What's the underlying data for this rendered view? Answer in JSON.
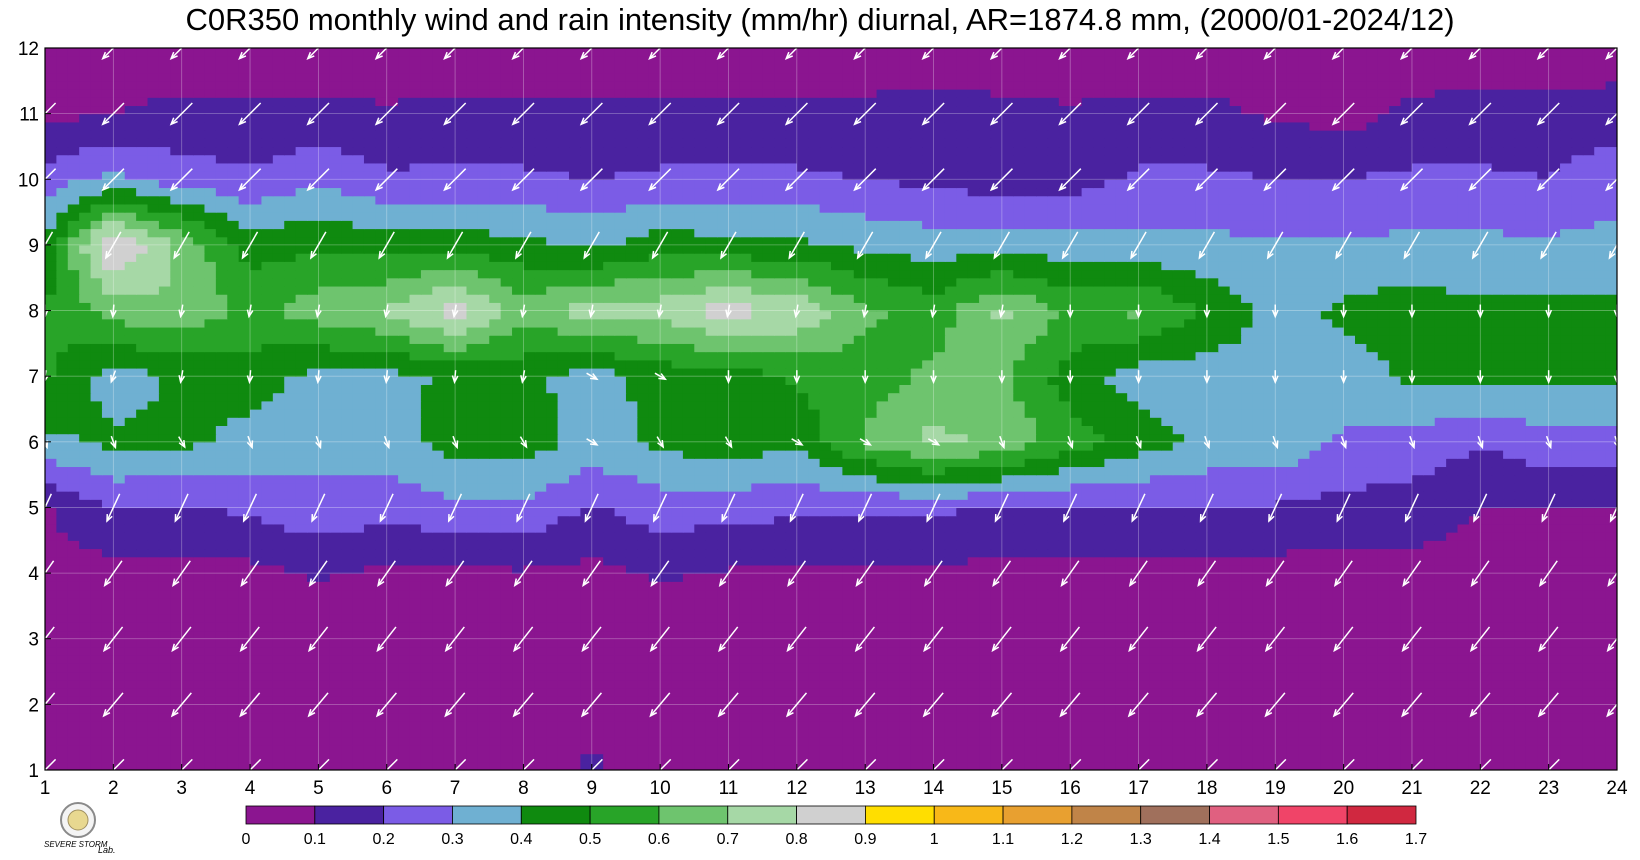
{
  "chart_data": {
    "type": "heatmap",
    "title": "C0R350 monthly wind and rain intensity (mm/hr) diurnal, AR=1874.8 mm, (2000/01-2024/12)",
    "xlabel": "",
    "ylabel": "",
    "x": [
      1,
      2,
      3,
      4,
      5,
      6,
      7,
      8,
      9,
      10,
      11,
      12,
      13,
      14,
      15,
      16,
      17,
      18,
      19,
      20,
      21,
      22,
      23,
      24
    ],
    "y": [
      1,
      2,
      3,
      4,
      5,
      6,
      7,
      8,
      9,
      10,
      11,
      12
    ],
    "xlim": [
      1,
      24
    ],
    "ylim": [
      1,
      12
    ],
    "grid": true,
    "x_tick_labels": [
      "1",
      "2",
      "3",
      "4",
      "5",
      "6",
      "7",
      "8",
      "9",
      "10",
      "11",
      "12",
      "13",
      "14",
      "15",
      "16",
      "17",
      "18",
      "19",
      "20",
      "21",
      "22",
      "23",
      "24"
    ],
    "y_tick_labels": [
      "1",
      "2",
      "3",
      "4",
      "5",
      "6",
      "7",
      "8",
      "9",
      "10",
      "11",
      "12"
    ],
    "colorbar": {
      "placement": "bottom",
      "levels": [
        0,
        0.1,
        0.2,
        0.3,
        0.4,
        0.5,
        0.6,
        0.7,
        0.8,
        0.9,
        1,
        1.1,
        1.2,
        1.3,
        1.4,
        1.5,
        1.6,
        1.7
      ],
      "labels": [
        "0",
        "0.1",
        "0.2",
        "0.3",
        "0.4",
        "0.5",
        "0.6",
        "0.7",
        "0.8",
        "0.9",
        "1",
        "1.1",
        "1.2",
        "1.3",
        "1.4",
        "1.5",
        "1.6",
        "1.7"
      ],
      "colors": [
        "#8b1590",
        "#4a22a0",
        "#7b5ce6",
        "#6fb0d2",
        "#0f8a0f",
        "#28a428",
        "#6ec46e",
        "#a6d8a6",
        "#d0d0d0",
        "#ffde00",
        "#f8b818",
        "#e8a030",
        "#c08448",
        "#a0705c",
        "#e06080",
        "#f04468",
        "#d02840"
      ]
    },
    "contour_line_color": "#f0b030",
    "wind_arrow_color": "#ffffff",
    "intensity_grid": [
      [
        0.05,
        0.05,
        0.05,
        0.05,
        0.05,
        0.05,
        0.05,
        0.05,
        0.12,
        0.05,
        0.05,
        0.05,
        0.05,
        0.05,
        0.05,
        0.05,
        0.05,
        0.05,
        0.05,
        0.05,
        0.05,
        0.05,
        0.05,
        0.05
      ],
      [
        0.05,
        0.05,
        0.05,
        0.05,
        0.05,
        0.05,
        0.05,
        0.05,
        0.05,
        0.05,
        0.05,
        0.05,
        0.05,
        0.05,
        0.05,
        0.05,
        0.05,
        0.05,
        0.05,
        0.05,
        0.05,
        0.05,
        0.05,
        0.05
      ],
      [
        0.05,
        0.05,
        0.05,
        0.05,
        0.05,
        0.05,
        0.05,
        0.05,
        0.05,
        0.05,
        0.05,
        0.05,
        0.05,
        0.05,
        0.05,
        0.05,
        0.05,
        0.05,
        0.05,
        0.05,
        0.05,
        0.05,
        0.05,
        0.05
      ],
      [
        0.06,
        0.06,
        0.06,
        0.07,
        0.11,
        0.08,
        0.08,
        0.09,
        0.07,
        0.11,
        0.09,
        0.08,
        0.08,
        0.08,
        0.07,
        0.06,
        0.06,
        0.06,
        0.06,
        0.06,
        0.06,
        0.06,
        0.06,
        0.06
      ],
      [
        0.09,
        0.21,
        0.19,
        0.22,
        0.27,
        0.24,
        0.27,
        0.28,
        0.19,
        0.25,
        0.24,
        0.22,
        0.21,
        0.22,
        0.19,
        0.19,
        0.19,
        0.19,
        0.19,
        0.17,
        0.16,
        0.1,
        0.1,
        0.1
      ],
      [
        0.38,
        0.42,
        0.42,
        0.37,
        0.33,
        0.35,
        0.45,
        0.45,
        0.36,
        0.42,
        0.46,
        0.42,
        0.62,
        0.73,
        0.68,
        0.55,
        0.45,
        0.38,
        0.38,
        0.28,
        0.26,
        0.21,
        0.26,
        0.27
      ],
      [
        0.52,
        0.35,
        0.42,
        0.44,
        0.37,
        0.37,
        0.42,
        0.43,
        0.35,
        0.44,
        0.44,
        0.52,
        0.55,
        0.62,
        0.62,
        0.45,
        0.35,
        0.35,
        0.38,
        0.35,
        0.42,
        0.42,
        0.42,
        0.42
      ],
      [
        0.5,
        0.65,
        0.68,
        0.58,
        0.65,
        0.72,
        0.85,
        0.65,
        0.75,
        0.75,
        0.85,
        0.78,
        0.62,
        0.55,
        0.72,
        0.58,
        0.62,
        0.48,
        0.36,
        0.42,
        0.45,
        0.42,
        0.42,
        0.42
      ],
      [
        0.42,
        0.92,
        0.68,
        0.45,
        0.48,
        0.45,
        0.45,
        0.43,
        0.38,
        0.45,
        0.43,
        0.42,
        0.38,
        0.35,
        0.35,
        0.35,
        0.32,
        0.32,
        0.32,
        0.32,
        0.32,
        0.32,
        0.32,
        0.32
      ],
      [
        0.25,
        0.32,
        0.25,
        0.22,
        0.28,
        0.22,
        0.22,
        0.22,
        0.2,
        0.22,
        0.22,
        0.22,
        0.2,
        0.18,
        0.15,
        0.16,
        0.22,
        0.22,
        0.2,
        0.2,
        0.22,
        0.22,
        0.2,
        0.28
      ],
      [
        0.07,
        0.1,
        0.12,
        0.12,
        0.12,
        0.11,
        0.12,
        0.12,
        0.12,
        0.12,
        0.12,
        0.12,
        0.12,
        0.13,
        0.12,
        0.11,
        0.12,
        0.12,
        0.09,
        0.06,
        0.12,
        0.13,
        0.13,
        0.14
      ],
      [
        0.05,
        0.05,
        0.05,
        0.05,
        0.05,
        0.05,
        0.05,
        0.05,
        0.05,
        0.05,
        0.05,
        0.05,
        0.05,
        0.06,
        0.05,
        0.05,
        0.05,
        0.05,
        0.05,
        0.05,
        0.05,
        0.05,
        0.05,
        0.05
      ]
    ],
    "wind_direction_deg": [
      [
        45,
        45,
        45,
        45,
        45,
        45,
        45,
        45,
        45,
        45,
        45,
        45,
        45,
        45,
        45,
        45,
        45,
        45,
        45,
        45,
        45,
        45,
        45,
        45
      ],
      [
        40,
        40,
        40,
        40,
        40,
        40,
        40,
        40,
        40,
        40,
        40,
        40,
        40,
        40,
        40,
        40,
        40,
        40,
        40,
        40,
        40,
        40,
        40,
        40
      ],
      [
        38,
        38,
        38,
        38,
        38,
        38,
        38,
        38,
        38,
        38,
        38,
        38,
        38,
        38,
        38,
        38,
        38,
        38,
        38,
        38,
        38,
        38,
        38,
        38
      ],
      [
        35,
        35,
        35,
        35,
        35,
        35,
        35,
        35,
        35,
        35,
        35,
        35,
        35,
        35,
        35,
        35,
        35,
        35,
        35,
        35,
        35,
        35,
        35,
        35
      ],
      [
        25,
        25,
        25,
        25,
        25,
        25,
        25,
        25,
        25,
        25,
        25,
        25,
        25,
        25,
        25,
        25,
        25,
        25,
        25,
        25,
        25,
        25,
        25,
        25
      ],
      [
        340,
        340,
        330,
        340,
        340,
        340,
        340,
        330,
        300,
        330,
        330,
        300,
        300,
        300,
        340,
        340,
        340,
        340,
        340,
        340,
        340,
        340,
        340,
        340
      ],
      [
        10,
        20,
        10,
        5,
        5,
        5,
        5,
        10,
        300,
        300,
        0,
        0,
        0,
        0,
        0,
        0,
        0,
        0,
        0,
        0,
        0,
        0,
        0,
        0
      ],
      [
        0,
        5,
        10,
        10,
        10,
        10,
        10,
        10,
        10,
        10,
        10,
        10,
        10,
        10,
        10,
        0,
        0,
        0,
        0,
        0,
        0,
        0,
        0,
        0
      ],
      [
        30,
        30,
        30,
        30,
        30,
        30,
        30,
        30,
        30,
        30,
        30,
        30,
        30,
        30,
        30,
        30,
        30,
        30,
        30,
        30,
        30,
        30,
        30,
        30
      ],
      [
        45,
        45,
        45,
        45,
        45,
        45,
        45,
        45,
        45,
        45,
        45,
        45,
        45,
        45,
        45,
        45,
        45,
        45,
        45,
        45,
        45,
        45,
        45,
        45
      ],
      [
        45,
        45,
        45,
        45,
        45,
        45,
        45,
        45,
        45,
        45,
        45,
        45,
        45,
        45,
        45,
        45,
        45,
        45,
        45,
        45,
        45,
        45,
        45,
        45
      ],
      [
        45,
        45,
        45,
        45,
        45,
        45,
        45,
        45,
        45,
        45,
        45,
        45,
        45,
        45,
        45,
        45,
        45,
        45,
        45,
        45,
        45,
        45,
        45,
        45
      ]
    ]
  },
  "logo": {
    "text_main": "SEVERE STORM",
    "text_lab": "Lab."
  }
}
